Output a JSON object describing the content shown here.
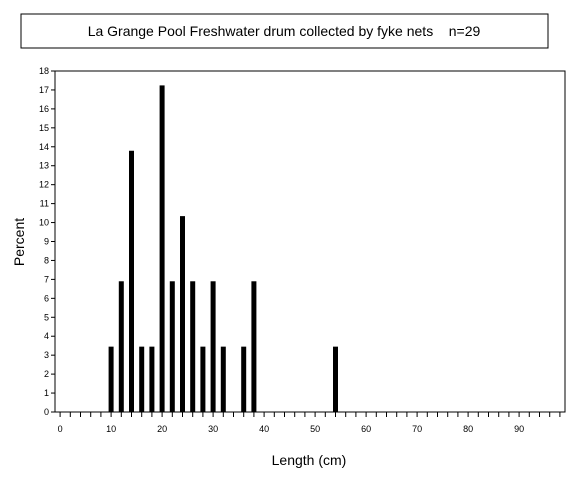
{
  "chart_data": {
    "type": "bar",
    "title": "La Grange Pool Freshwater drum collected by fyke nets    n=29",
    "xlabel": "Length (cm)",
    "ylabel": "Percent",
    "xlim": [
      -1,
      99
    ],
    "ylim": [
      0,
      18
    ],
    "x_tick_labels": [
      "0",
      "10",
      "20",
      "30",
      "40",
      "50",
      "60",
      "70",
      "80",
      "90"
    ],
    "y_tick_labels": [
      "0",
      "1",
      "2",
      "3",
      "4",
      "5",
      "6",
      "7",
      "8",
      "9",
      "10",
      "11",
      "12",
      "13",
      "14",
      "15",
      "16",
      "17",
      "18"
    ],
    "x": [
      10,
      12,
      14,
      16,
      18,
      20,
      22,
      24,
      26,
      28,
      30,
      32,
      36,
      38,
      54
    ],
    "values": [
      3.45,
      6.9,
      13.79,
      3.45,
      3.45,
      17.24,
      6.9,
      10.34,
      6.9,
      3.45,
      6.9,
      3.45,
      3.45,
      6.9,
      3.45
    ],
    "grid": false,
    "bar_color": "#000000"
  }
}
